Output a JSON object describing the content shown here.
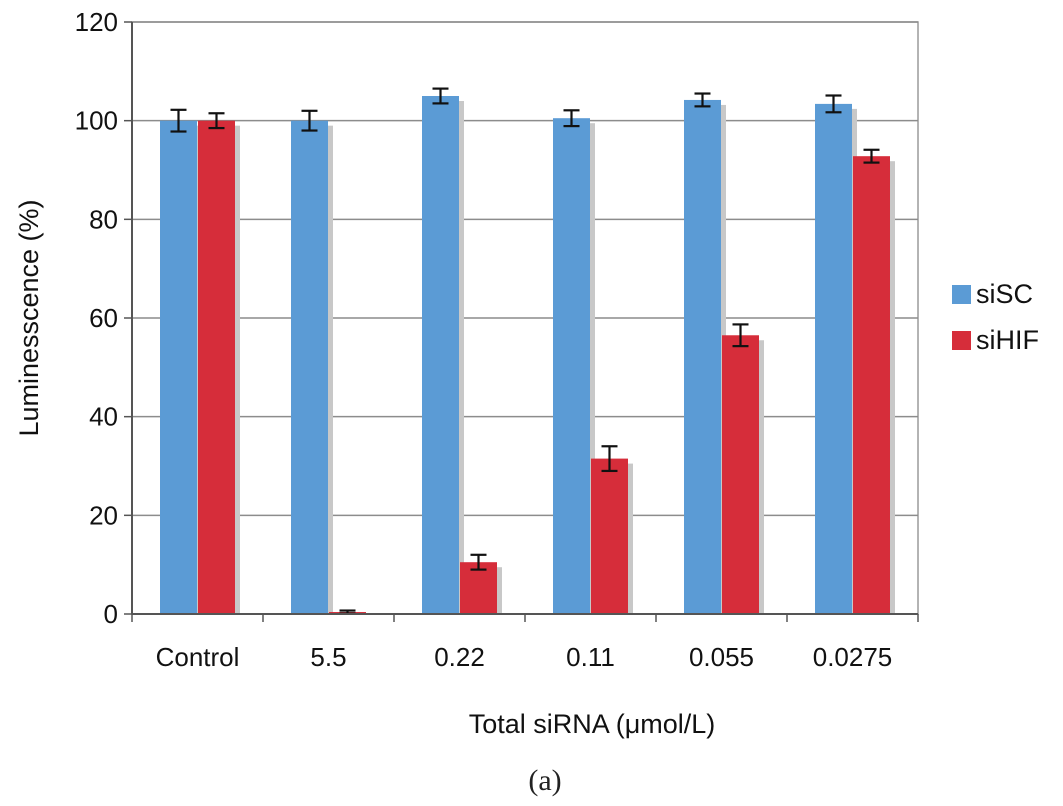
{
  "chart_data": {
    "type": "bar",
    "categories": [
      "Control",
      "5.5",
      "0.22",
      "0.11",
      "0.055",
      "0.0275"
    ],
    "series": [
      {
        "name": "siSC",
        "color": "#5b9bd5",
        "values": [
          100,
          100,
          105,
          100.5,
          104.2,
          103.4
        ],
        "errors": [
          2.2,
          2.0,
          1.5,
          1.6,
          1.3,
          1.7
        ]
      },
      {
        "name": "siHIF",
        "color": "#d62d3a",
        "values": [
          100,
          0.4,
          10.5,
          31.5,
          56.5,
          92.8
        ],
        "errors": [
          1.5,
          0.3,
          1.5,
          2.5,
          2.2,
          1.3
        ]
      }
    ],
    "xlabel": "Total siRNA (μmol/L)",
    "ylabel": "Luminesscence (%)",
    "ylim": [
      0,
      120
    ],
    "yticks": [
      0,
      20,
      40,
      60,
      80,
      100,
      120
    ],
    "grid": true,
    "legend": "right",
    "caption": "(a)"
  }
}
